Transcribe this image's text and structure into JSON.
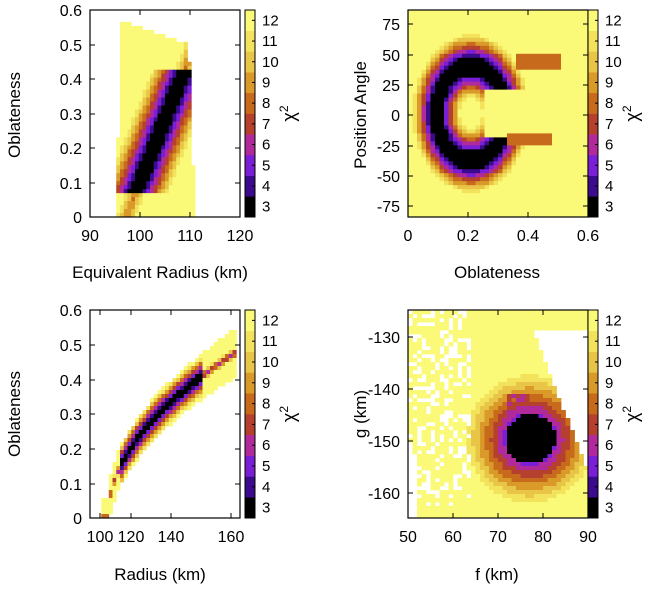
{
  "figure": {
    "colorbar_label_base": "χ",
    "colorbar_label_sup": "2",
    "colorbar_ticks": [
      "12",
      "11",
      "10",
      "9",
      "8",
      "7",
      "6",
      "5",
      "4",
      "3"
    ],
    "colormap": [
      "#000000",
      "#3c0a8c",
      "#7a1fd6",
      "#b12a9c",
      "#b5402e",
      "#c86a1c",
      "#d99a2a",
      "#e8c447",
      "#f2e25c",
      "#fafa78"
    ]
  },
  "chart_data": [
    {
      "type": "heatmap",
      "title": "",
      "xlabel": "Equivalent Radius (km)",
      "ylabel": "Oblateness",
      "xlim": [
        90,
        120
      ],
      "ylim": [
        0,
        0.6
      ],
      "xticks": [
        "90",
        "100",
        "110",
        "120"
      ],
      "yticks": [
        "0",
        "0.1",
        "0.2",
        "0.3",
        "0.4",
        "0.5",
        "0.6"
      ],
      "colorbar": {
        "label": "χ2",
        "range": [
          3,
          12
        ]
      },
      "minimum_region": {
        "x_range": [
          98,
          110.5
        ],
        "y_range": [
          0.08,
          0.43
        ]
      },
      "data_extent": {
        "x_range": [
          97.5,
          111
        ],
        "y_range": [
          0,
          0.58
        ]
      }
    },
    {
      "type": "heatmap",
      "title": "",
      "xlabel": "Oblateness",
      "ylabel": "Position Angle",
      "xlim": [
        0,
        0.6
      ],
      "ylim": [
        -90,
        90
      ],
      "xticks": [
        "0",
        "0.2",
        "0.4",
        "0.6"
      ],
      "yticks": [
        "75",
        "50",
        "25",
        "0",
        "-25",
        "-50",
        "-75"
      ],
      "colorbar": {
        "label": "χ2",
        "range": [
          3,
          12
        ]
      },
      "minimum_region": {
        "x_range": [
          0.07,
          0.5
        ],
        "y_range": [
          -25,
          45
        ]
      },
      "data_extent": {
        "x_range": [
          0,
          0.6
        ],
        "y_range": [
          -90,
          90
        ]
      }
    },
    {
      "type": "heatmap",
      "title": "",
      "xlabel": "Radius (km)",
      "ylabel": "Oblateness",
      "xlim": [
        90,
        165
      ],
      "ylim": [
        0,
        0.6
      ],
      "xticks": [
        "100",
        "120",
        "140",
        "160"
      ],
      "yticks": [
        "0",
        "0.1",
        "0.2",
        "0.3",
        "0.4",
        "0.5",
        "0.6"
      ],
      "colorbar": {
        "label": "χ2",
        "range": [
          3,
          12
        ]
      },
      "minimum_region": {
        "x_range": [
          104,
          146
        ],
        "y_range": [
          0.08,
          0.45
        ]
      },
      "data_extent": {
        "x_range": [
          99,
          161
        ],
        "y_range": [
          0,
          0.58
        ]
      }
    },
    {
      "type": "heatmap",
      "title": "",
      "xlabel": "f (km)",
      "ylabel": "g (km)",
      "xlim": [
        50,
        90
      ],
      "ylim": [
        -165,
        -125
      ],
      "xticks": [
        "50",
        "60",
        "70",
        "80",
        "90"
      ],
      "yticks": [
        "-130",
        "-140",
        "-150",
        "-160"
      ],
      "colorbar": {
        "label": "χ2",
        "range": [
          3,
          12
        ]
      },
      "minimum_region": {
        "x_range": [
          71,
          81
        ],
        "y_range": [
          -150,
          -141
        ]
      },
      "data_extent": {
        "x_range": [
          52,
          90
        ],
        "y_range": [
          -165,
          -125
        ]
      }
    }
  ]
}
